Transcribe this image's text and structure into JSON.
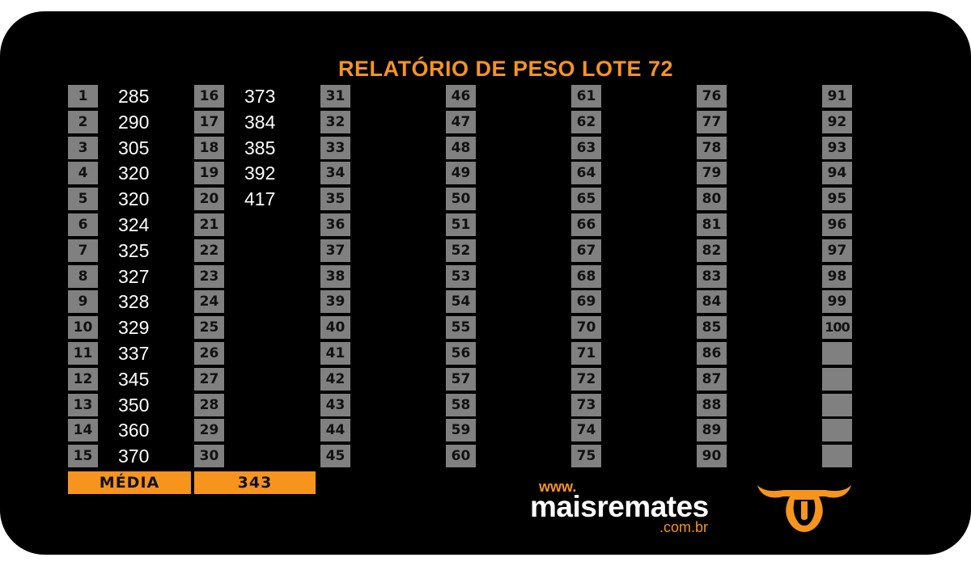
{
  "report": {
    "title": "RELATÓRIO DE PESO LOTE 72",
    "columns": [
      {
        "numbers": [
          "1",
          "2",
          "3",
          "4",
          "5",
          "6",
          "7",
          "8",
          "9",
          "10",
          "11",
          "12",
          "13",
          "14",
          "15"
        ],
        "values": [
          "285",
          "290",
          "305",
          "320",
          "320",
          "324",
          "325",
          "327",
          "328",
          "329",
          "337",
          "345",
          "350",
          "360",
          "370"
        ]
      },
      {
        "numbers": [
          "16",
          "17",
          "18",
          "19",
          "20",
          "21",
          "22",
          "23",
          "24",
          "25",
          "26",
          "27",
          "28",
          "29",
          "30"
        ],
        "values": [
          "373",
          "384",
          "385",
          "392",
          "417",
          "",
          "",
          "",
          "",
          "",
          "",
          "",
          "",
          "",
          ""
        ]
      },
      {
        "numbers": [
          "31",
          "32",
          "33",
          "34",
          "35",
          "36",
          "37",
          "38",
          "39",
          "40",
          "41",
          "42",
          "43",
          "44",
          "45"
        ],
        "values": []
      },
      {
        "numbers": [
          "46",
          "47",
          "48",
          "49",
          "50",
          "51",
          "52",
          "53",
          "54",
          "55",
          "56",
          "57",
          "58",
          "59",
          "60"
        ],
        "values": []
      },
      {
        "numbers": [
          "61",
          "62",
          "63",
          "64",
          "65",
          "66",
          "67",
          "68",
          "69",
          "70",
          "71",
          "72",
          "73",
          "74",
          "75"
        ],
        "values": []
      },
      {
        "numbers": [
          "76",
          "77",
          "78",
          "79",
          "80",
          "81",
          "82",
          "83",
          "84",
          "85",
          "86",
          "87",
          "88",
          "89",
          "90"
        ],
        "values": []
      },
      {
        "numbers": [
          "91",
          "92",
          "93",
          "94",
          "95",
          "96",
          "97",
          "98",
          "99",
          "100",
          "",
          "",
          "",
          "",
          ""
        ],
        "values": []
      }
    ],
    "average_label": "MÉDIA",
    "average_value": "343"
  },
  "brand": {
    "www": "www.",
    "name": "maisremates",
    "domain": ".com.br",
    "logo_icon": "bull-head-icon"
  },
  "colors": {
    "accent": "#f7941d",
    "cell": "#808080",
    "background": "#000000"
  }
}
